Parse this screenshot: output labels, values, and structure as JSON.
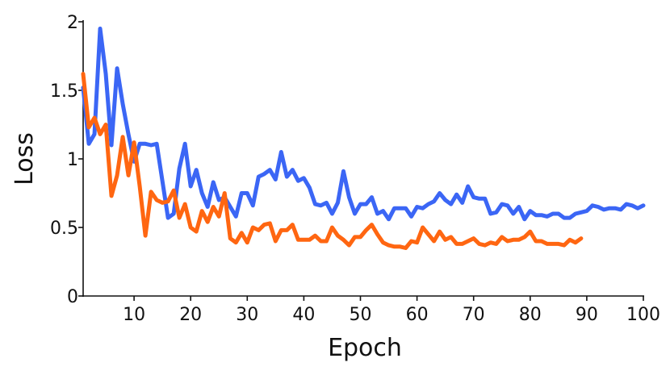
{
  "chart_data": {
    "type": "line",
    "title": "",
    "xlabel": "Epoch",
    "ylabel": "Loss",
    "xlim": [
      1,
      100
    ],
    "ylim": [
      0,
      2
    ],
    "xticks": [
      10,
      20,
      30,
      40,
      50,
      60,
      70,
      80,
      90,
      100
    ],
    "xtick_labels": [
      "10",
      "20",
      "30",
      "40",
      "50",
      "60",
      "70",
      "80",
      "90",
      "100"
    ],
    "yticks": [
      0,
      0.5,
      1,
      1.5,
      2
    ],
    "ytick_labels": [
      "0",
      "0.5",
      "1",
      "1.5",
      "2"
    ],
    "grid": false,
    "legend": "none",
    "series": [
      {
        "color": "#3b66f5",
        "x": [
          1,
          2,
          3,
          4,
          5,
          6,
          7,
          8,
          9,
          10,
          11,
          12,
          13,
          14,
          15,
          16,
          17,
          18,
          19,
          20,
          21,
          22,
          23,
          24,
          25,
          26,
          27,
          28,
          29,
          30,
          31,
          32,
          33,
          34,
          35,
          36,
          37,
          38,
          39,
          40,
          41,
          42,
          43,
          44,
          45,
          46,
          47,
          48,
          49,
          50,
          51,
          52,
          53,
          54,
          55,
          56,
          57,
          58,
          59,
          60,
          61,
          62,
          63,
          64,
          65,
          66,
          67,
          68,
          69,
          70,
          71,
          72,
          73,
          74,
          75,
          76,
          77,
          78,
          79,
          80,
          81,
          82,
          83,
          84,
          85,
          86,
          87,
          88,
          89,
          90,
          91,
          92,
          93,
          94,
          95,
          96,
          97,
          98,
          99,
          100
        ],
        "y": [
          1.52,
          1.11,
          1.18,
          1.95,
          1.62,
          1.1,
          1.66,
          1.4,
          1.18,
          0.98,
          1.11,
          1.11,
          1.1,
          1.11,
          0.84,
          0.57,
          0.6,
          0.93,
          1.11,
          0.8,
          0.92,
          0.75,
          0.65,
          0.83,
          0.7,
          0.72,
          0.65,
          0.58,
          0.75,
          0.75,
          0.66,
          0.87,
          0.89,
          0.92,
          0.85,
          1.05,
          0.87,
          0.92,
          0.84,
          0.86,
          0.79,
          0.67,
          0.66,
          0.68,
          0.6,
          0.68,
          0.91,
          0.72,
          0.6,
          0.67,
          0.67,
          0.72,
          0.6,
          0.62,
          0.56,
          0.64,
          0.64,
          0.64,
          0.58,
          0.65,
          0.64,
          0.67,
          0.69,
          0.75,
          0.7,
          0.67,
          0.74,
          0.68,
          0.8,
          0.72,
          0.71,
          0.71,
          0.6,
          0.61,
          0.67,
          0.66,
          0.6,
          0.65,
          0.56,
          0.62,
          0.59,
          0.59,
          0.58,
          0.6,
          0.6,
          0.57,
          0.57,
          0.6,
          0.61,
          0.62,
          0.66,
          0.65,
          0.63,
          0.64,
          0.64,
          0.63,
          0.67,
          0.66,
          0.64,
          0.66
        ]
      },
      {
        "color": "#ff6611",
        "x": [
          1,
          2,
          3,
          4,
          5,
          6,
          7,
          8,
          9,
          10,
          11,
          12,
          13,
          14,
          15,
          16,
          17,
          18,
          19,
          20,
          21,
          22,
          23,
          24,
          25,
          26,
          27,
          28,
          29,
          30,
          31,
          32,
          33,
          34,
          35,
          36,
          37,
          38,
          39,
          40,
          41,
          42,
          43,
          44,
          45,
          46,
          47,
          48,
          49,
          50,
          51,
          52,
          53,
          54,
          55,
          56,
          57,
          58,
          59,
          60,
          61,
          62,
          63,
          64,
          65,
          66,
          67,
          68,
          69,
          70,
          71,
          72,
          73,
          74,
          75,
          76,
          77,
          78,
          79,
          80,
          81,
          82,
          83,
          84,
          85,
          86,
          87,
          88,
          89
        ],
        "y": [
          1.62,
          1.23,
          1.3,
          1.18,
          1.25,
          0.73,
          0.88,
          1.16,
          0.88,
          1.12,
          0.8,
          0.44,
          0.76,
          0.7,
          0.68,
          0.69,
          0.77,
          0.57,
          0.67,
          0.5,
          0.47,
          0.62,
          0.54,
          0.65,
          0.58,
          0.75,
          0.42,
          0.39,
          0.46,
          0.39,
          0.5,
          0.48,
          0.52,
          0.53,
          0.4,
          0.48,
          0.48,
          0.52,
          0.41,
          0.41,
          0.41,
          0.44,
          0.4,
          0.4,
          0.5,
          0.44,
          0.41,
          0.37,
          0.43,
          0.43,
          0.48,
          0.52,
          0.45,
          0.39,
          0.37,
          0.36,
          0.36,
          0.35,
          0.4,
          0.39,
          0.5,
          0.45,
          0.4,
          0.47,
          0.41,
          0.43,
          0.38,
          0.38,
          0.4,
          0.42,
          0.38,
          0.37,
          0.39,
          0.38,
          0.43,
          0.4,
          0.41,
          0.41,
          0.43,
          0.47,
          0.4,
          0.4,
          0.38,
          0.38,
          0.38,
          0.37,
          0.41,
          0.39,
          0.42
        ]
      }
    ]
  }
}
